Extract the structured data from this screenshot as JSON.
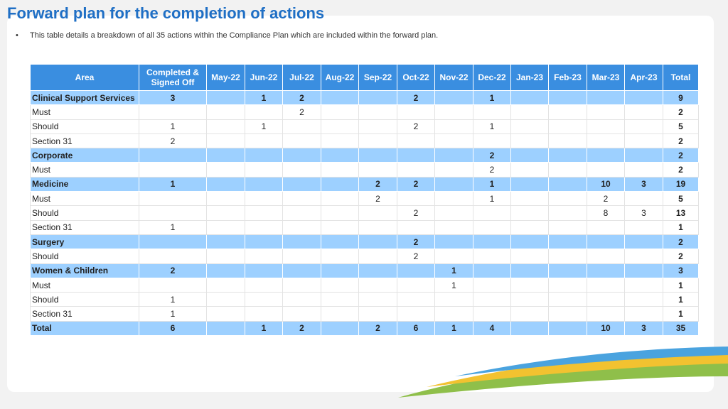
{
  "header": {
    "title": "Forward plan for the completion of actions",
    "bullet": "This table details a breakdown of all 35 actions within the Compliance Plan which are included within the forward plan."
  },
  "table": {
    "columns": [
      "Area",
      "Completed & Signed Off",
      "May-22",
      "Jun-22",
      "Jul-22",
      "Aug-22",
      "Sep-22",
      "Oct-22",
      "Nov-22",
      "Dec-22",
      "Jan-23",
      "Feb-23",
      "Mar-23",
      "Apr-23",
      "Total"
    ],
    "rows": [
      {
        "group": true,
        "cells": [
          "Clinical Support Services",
          3,
          null,
          1,
          2,
          null,
          null,
          2,
          null,
          1,
          null,
          null,
          null,
          null,
          9
        ]
      },
      {
        "group": false,
        "cells": [
          "Must",
          null,
          null,
          null,
          2,
          null,
          null,
          null,
          null,
          null,
          null,
          null,
          null,
          null,
          2
        ]
      },
      {
        "group": false,
        "cells": [
          "Should",
          1,
          null,
          1,
          null,
          null,
          null,
          2,
          null,
          1,
          null,
          null,
          null,
          null,
          5
        ]
      },
      {
        "group": false,
        "cells": [
          "Section 31",
          2,
          null,
          null,
          null,
          null,
          null,
          null,
          null,
          null,
          null,
          null,
          null,
          null,
          2
        ]
      },
      {
        "group": true,
        "cells": [
          "Corporate",
          null,
          null,
          null,
          null,
          null,
          null,
          null,
          null,
          2,
          null,
          null,
          null,
          null,
          2
        ]
      },
      {
        "group": false,
        "cells": [
          "Must",
          null,
          null,
          null,
          null,
          null,
          null,
          null,
          null,
          2,
          null,
          null,
          null,
          null,
          2
        ]
      },
      {
        "group": true,
        "cells": [
          "Medicine",
          1,
          null,
          null,
          null,
          null,
          2,
          2,
          null,
          1,
          null,
          null,
          10,
          3,
          19
        ]
      },
      {
        "group": false,
        "cells": [
          "Must",
          null,
          null,
          null,
          null,
          null,
          2,
          null,
          null,
          1,
          null,
          null,
          2,
          null,
          5
        ]
      },
      {
        "group": false,
        "cells": [
          "Should",
          null,
          null,
          null,
          null,
          null,
          null,
          2,
          null,
          null,
          null,
          null,
          8,
          3,
          13
        ]
      },
      {
        "group": false,
        "cells": [
          "Section 31",
          1,
          null,
          null,
          null,
          null,
          null,
          null,
          null,
          null,
          null,
          null,
          null,
          null,
          1
        ]
      },
      {
        "group": true,
        "cells": [
          "Surgery",
          null,
          null,
          null,
          null,
          null,
          null,
          2,
          null,
          null,
          null,
          null,
          null,
          null,
          2
        ]
      },
      {
        "group": false,
        "cells": [
          "Should",
          null,
          null,
          null,
          null,
          null,
          null,
          2,
          null,
          null,
          null,
          null,
          null,
          null,
          2
        ]
      },
      {
        "group": true,
        "cells": [
          "Women & Children",
          2,
          null,
          null,
          null,
          null,
          null,
          null,
          1,
          null,
          null,
          null,
          null,
          null,
          3
        ]
      },
      {
        "group": false,
        "cells": [
          "Must",
          null,
          null,
          null,
          null,
          null,
          null,
          null,
          1,
          null,
          null,
          null,
          null,
          null,
          1
        ]
      },
      {
        "group": false,
        "cells": [
          "Should",
          1,
          null,
          null,
          null,
          null,
          null,
          null,
          null,
          null,
          null,
          null,
          null,
          null,
          1
        ]
      },
      {
        "group": false,
        "cells": [
          "Section 31",
          1,
          null,
          null,
          null,
          null,
          null,
          null,
          null,
          null,
          null,
          null,
          null,
          null,
          1
        ]
      },
      {
        "group": true,
        "cells": [
          "Total",
          6,
          null,
          1,
          2,
          null,
          2,
          6,
          1,
          4,
          null,
          null,
          10,
          3,
          35
        ]
      }
    ]
  }
}
